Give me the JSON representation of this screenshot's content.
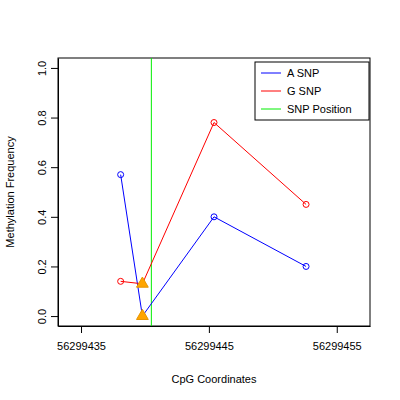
{
  "chart_data": {
    "type": "line",
    "x_label": "CpG Coordinates",
    "y_label": "Methylation Frequency",
    "x": [
      56299438.1,
      56299439.8,
      56299445.4,
      56299452.6
    ],
    "series": [
      {
        "name": "A SNP",
        "color": "#0000ff",
        "marker": "circle",
        "line_style": "solid",
        "values": [
          0.57,
          0.0,
          0.4,
          0.2
        ]
      },
      {
        "name": "G SNP",
        "color": "#ff0000",
        "marker": "circle",
        "line_style": "solid",
        "values": [
          0.14,
          0.13,
          0.78,
          0.45
        ]
      },
      {
        "name": "SNP Position",
        "color": "#00ee00",
        "type": "vline",
        "x": [
          56299440.5
        ]
      }
    ],
    "xlim": [
      56299433.2,
      56299457.6
    ],
    "xticks": [
      56299435,
      56299445,
      56299455
    ],
    "ylim": [
      -0.04,
      1.04
    ],
    "yticks": [
      {
        "value": 0,
        "label": "0.0"
      },
      0.2,
      0.4,
      0.6,
      0.8,
      {
        "value": 1,
        "label": "1.0"
      }
    ],
    "legend": "topright",
    "grid": false
  }
}
